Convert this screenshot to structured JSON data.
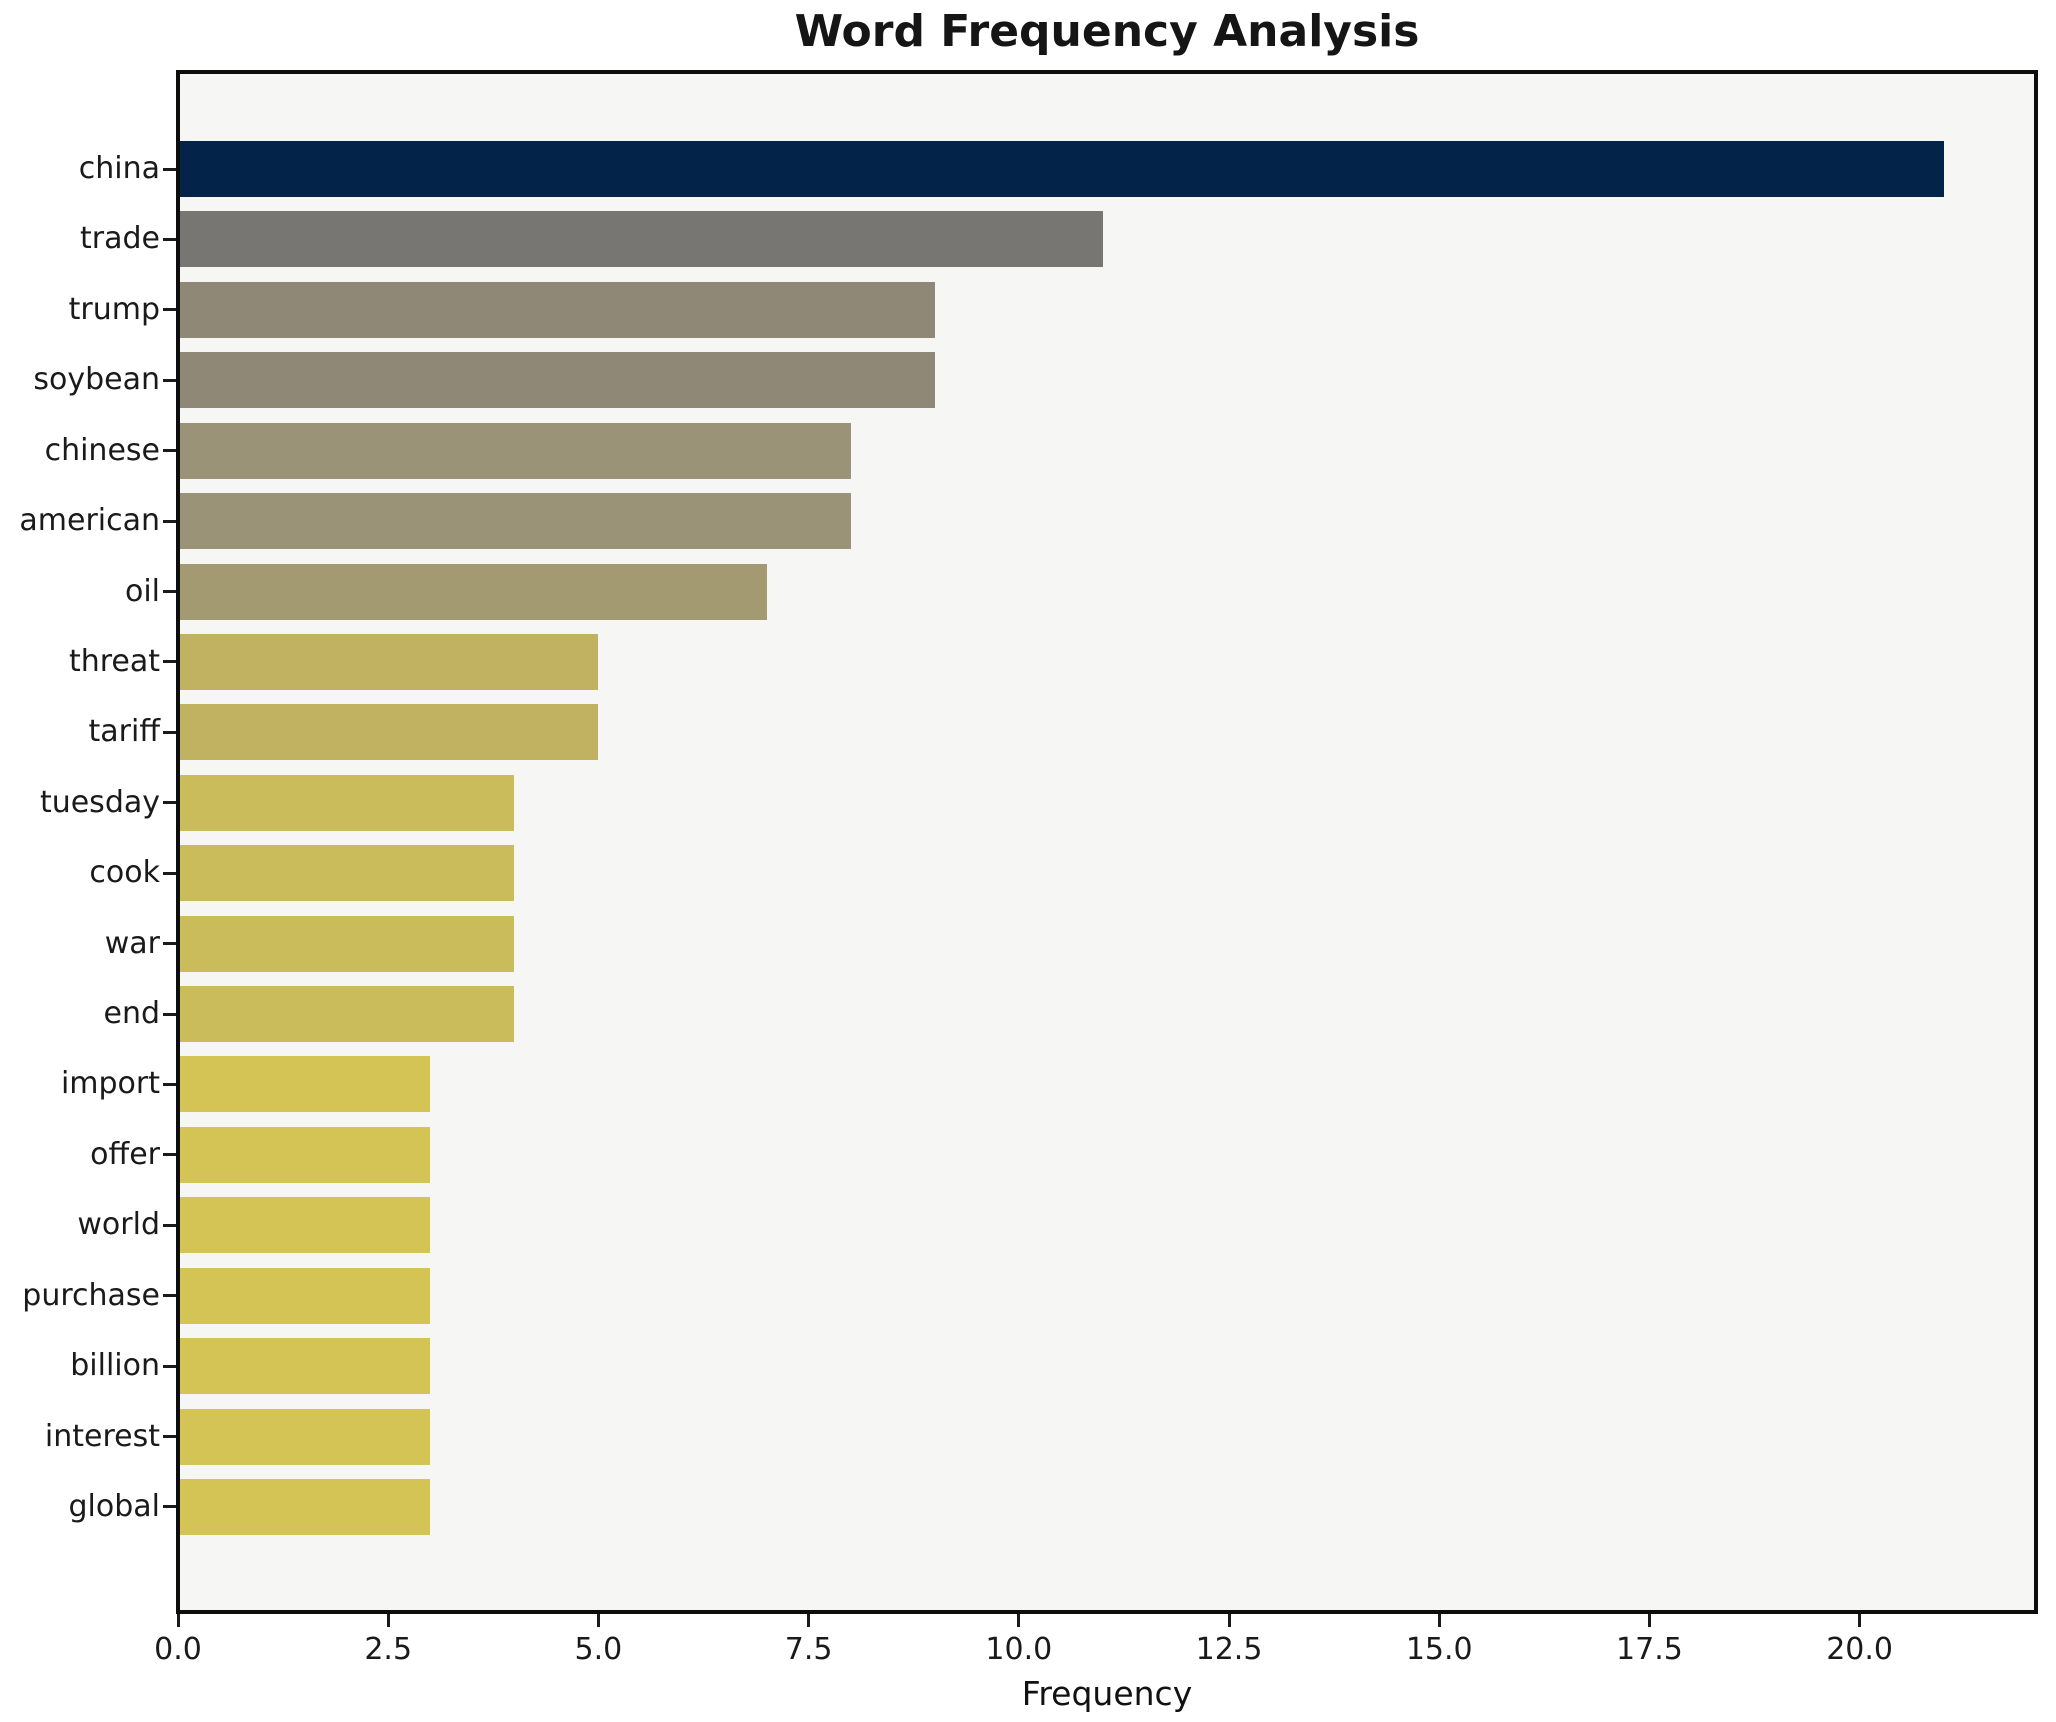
{
  "chart_data": {
    "type": "bar",
    "orientation": "horizontal",
    "title": "Word Frequency Analysis",
    "xlabel": "Frequency",
    "ylabel": "",
    "categories": [
      "china",
      "trade",
      "trump",
      "soybean",
      "chinese",
      "american",
      "oil",
      "threat",
      "tariff",
      "tuesday",
      "cook",
      "war",
      "end",
      "import",
      "offer",
      "world",
      "purchase",
      "billion",
      "interest",
      "global"
    ],
    "values": [
      21,
      11,
      9,
      9,
      8,
      8,
      7,
      5,
      5,
      4,
      4,
      4,
      4,
      3,
      3,
      3,
      3,
      3,
      3,
      3
    ],
    "bar_colors": [
      "#042349",
      "#777673",
      "#8f8876",
      "#8f8876",
      "#9b9378",
      "#9b9378",
      "#a49a72",
      "#c1b262",
      "#c1b262",
      "#cbbc5b",
      "#cbbc5b",
      "#cbbc5b",
      "#cbbc5b",
      "#d4c455",
      "#d4c455",
      "#d4c455",
      "#d4c455",
      "#d4c455",
      "#d4c455",
      "#d4c455"
    ],
    "xlim": [
      0,
      22.05
    ],
    "xticks": {
      "values": [
        0,
        2.5,
        5,
        7.5,
        10,
        12.5,
        15,
        17.5,
        20
      ],
      "labels": [
        "0.0",
        "2.5",
        "5.0",
        "7.5",
        "10.0",
        "12.5",
        "15.0",
        "17.5",
        "20.0"
      ]
    },
    "grid": false,
    "legend": "none",
    "plot_background": "#f6f6f4",
    "figure_background": "#ffffff",
    "spine_color": "#0d0d0d",
    "title_color": "#151515",
    "tick_label_color": "#1a1a1a"
  }
}
